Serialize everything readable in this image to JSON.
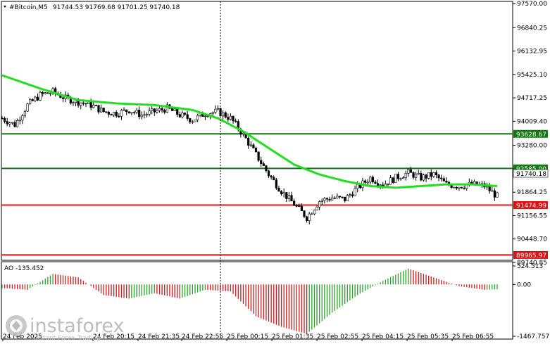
{
  "header": {
    "symbol": "#Bitcoin,M5",
    "ohlc": "91744.53 91769.68 91701.25 91740.18"
  },
  "colors": {
    "background": "#ffffff",
    "candle": "#000000",
    "moving_average": "#22dd22",
    "support_line": "#e01010",
    "resistance_line": "#117711",
    "ao_up": "#2ca02c",
    "ao_down": "#cc1a1a",
    "grid": "#000000"
  },
  "price_axis": {
    "ticks": [
      "97570.00",
      "96840.25",
      "96132.95",
      "95425.10",
      "94717.25",
      "94009.40",
      "93280.00",
      "92585.00",
      "91864.25",
      "91156.55",
      "90448.70",
      "89740.85"
    ],
    "current_price": "91740.18"
  },
  "levels": [
    {
      "name": "resistance-1",
      "value": 93628.67,
      "label": "93628.67",
      "kind": "resistance"
    },
    {
      "name": "resistance-2",
      "value": 92585.0,
      "label": "92585.00",
      "kind": "resistance"
    },
    {
      "name": "support-1",
      "value": 91474.99,
      "label": "91474.99",
      "kind": "support"
    },
    {
      "name": "support-2",
      "value": 89965.97,
      "label": "89965.97",
      "kind": "support"
    }
  ],
  "time_axis": {
    "labels": [
      "24 Feb 2025",
      "24 Feb 20:15",
      "24 Feb 21:35",
      "24 Feb 22:55",
      "25 Feb 00:15",
      "25 Feb 01:35",
      "25 Feb 02:55",
      "25 Feb 04:15",
      "25 Feb 05:35",
      "25 Feb 06:55"
    ]
  },
  "ao_panel": {
    "title": "AO -135.452",
    "ticks": [
      "524.513",
      "0.00",
      "-1467.757"
    ]
  },
  "watermark": {
    "brand": "instaforex",
    "tagline": "Instant Forex Trading"
  },
  "chart_data": {
    "type": "candlestick",
    "instrument": "#Bitcoin",
    "timeframe": "M5",
    "ylim": [
      89740.85,
      97570.0
    ],
    "close_path": [
      [
        0,
        94100
      ],
      [
        5,
        93900
      ],
      [
        10,
        94500
      ],
      [
        15,
        94800
      ],
      [
        20,
        94900
      ],
      [
        25,
        94700
      ],
      [
        30,
        94600
      ],
      [
        35,
        94500
      ],
      [
        40,
        94300
      ],
      [
        45,
        94250
      ],
      [
        50,
        94350
      ],
      [
        55,
        94200
      ],
      [
        60,
        94300
      ],
      [
        65,
        94400
      ],
      [
        70,
        94200
      ],
      [
        75,
        94050
      ],
      [
        80,
        94250
      ],
      [
        85,
        94300
      ],
      [
        90,
        94100
      ],
      [
        95,
        93600
      ],
      [
        100,
        93000
      ],
      [
        105,
        92400
      ],
      [
        110,
        91900
      ],
      [
        115,
        91500
      ],
      [
        120,
        91100
      ],
      [
        125,
        91600
      ],
      [
        130,
        91700
      ],
      [
        135,
        91650
      ],
      [
        140,
        92000
      ],
      [
        145,
        92300
      ],
      [
        150,
        92100
      ],
      [
        155,
        92300
      ],
      [
        160,
        92450
      ],
      [
        165,
        92300
      ],
      [
        170,
        92400
      ],
      [
        175,
        92100
      ],
      [
        180,
        92050
      ],
      [
        185,
        92100
      ],
      [
        190,
        92050
      ],
      [
        195,
        91740
      ]
    ],
    "moving_average": [
      [
        0,
        95400
      ],
      [
        15,
        95000
      ],
      [
        30,
        94650
      ],
      [
        45,
        94550
      ],
      [
        60,
        94500
      ],
      [
        75,
        94350
      ],
      [
        85,
        94100
      ],
      [
        95,
        93700
      ],
      [
        105,
        93200
      ],
      [
        115,
        92700
      ],
      [
        125,
        92400
      ],
      [
        135,
        92200
      ],
      [
        145,
        92050
      ],
      [
        155,
        92000
      ],
      [
        165,
        92050
      ],
      [
        175,
        92100
      ],
      [
        185,
        92100
      ],
      [
        195,
        92050
      ]
    ],
    "ao_values": [
      [
        0,
        -100
      ],
      [
        10,
        -150
      ],
      [
        20,
        300
      ],
      [
        30,
        200
      ],
      [
        40,
        -300
      ],
      [
        50,
        -400
      ],
      [
        60,
        -250
      ],
      [
        70,
        -400
      ],
      [
        80,
        -150
      ],
      [
        90,
        -200
      ],
      [
        100,
        -900
      ],
      [
        110,
        -1200
      ],
      [
        120,
        -1400
      ],
      [
        130,
        -800
      ],
      [
        140,
        -300
      ],
      [
        150,
        100
      ],
      [
        160,
        450
      ],
      [
        170,
        200
      ],
      [
        180,
        -50
      ],
      [
        190,
        -150
      ],
      [
        195,
        -135.452
      ]
    ]
  }
}
